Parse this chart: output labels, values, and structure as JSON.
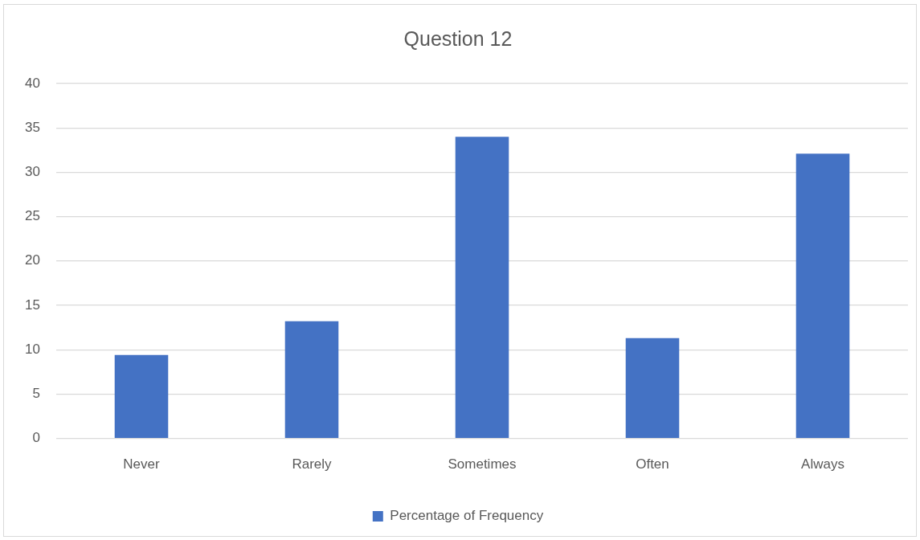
{
  "chart_data": {
    "type": "bar",
    "title": "Question 12",
    "categories": [
      "Never",
      "Rarely",
      "Sometimes",
      "Often",
      "Always"
    ],
    "series": [
      {
        "name": "Percentage of Frequency",
        "color": "#4472c4",
        "values": [
          9.4,
          13.2,
          34,
          11.3,
          32.1
        ]
      }
    ],
    "ylim": [
      0,
      40
    ],
    "yticks": [
      0,
      5,
      10,
      15,
      20,
      25,
      30,
      35,
      40
    ],
    "grid": "y",
    "legend": "bottom"
  }
}
